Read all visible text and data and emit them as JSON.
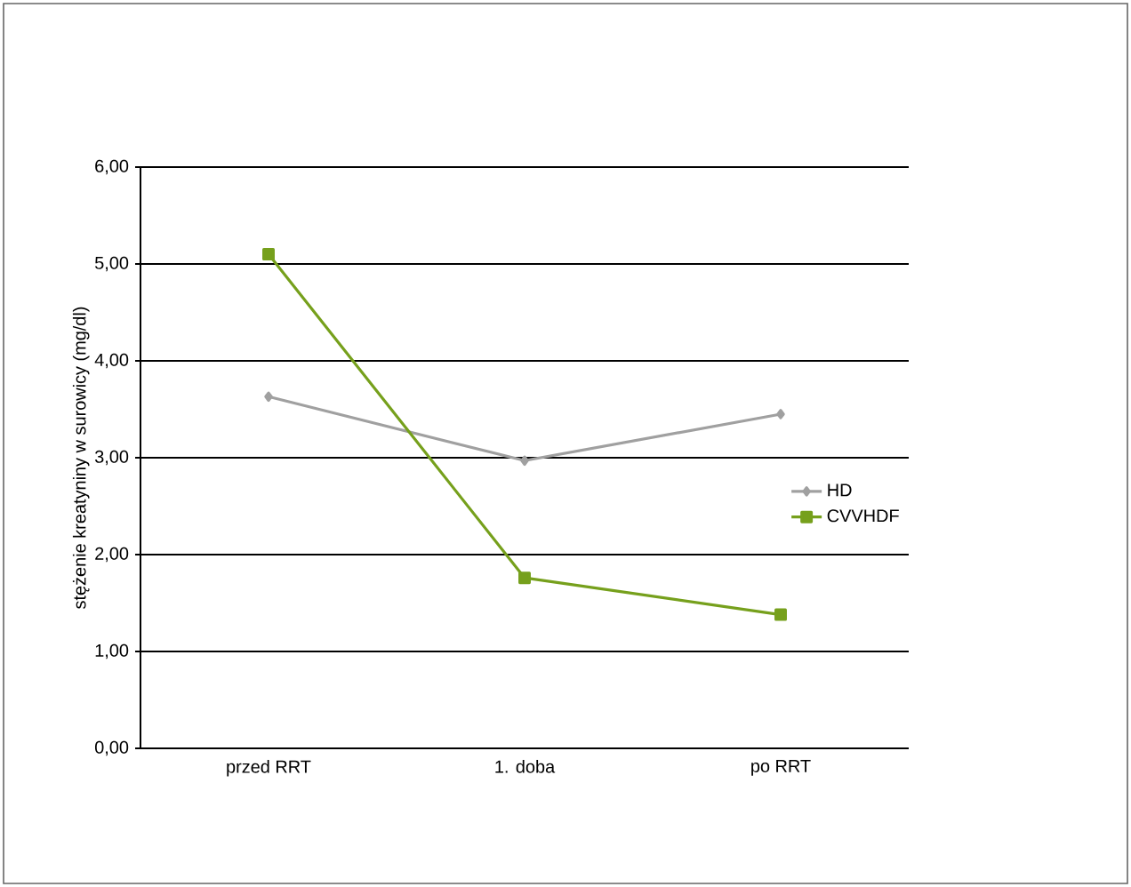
{
  "chart_data": {
    "type": "line",
    "ylabel": "stężenie kreatyniny w surowicy (mg/dl)",
    "categories": [
      "przed RRT",
      "1. doba",
      "po RRT"
    ],
    "series": [
      {
        "name": "HD",
        "color": "#a0a0a0",
        "marker": "diamond",
        "values": [
          3.63,
          2.97,
          3.45
        ]
      },
      {
        "name": "CVVHDF",
        "color": "#76a01c",
        "marker": "square",
        "values": [
          5.1,
          1.76,
          1.38
        ]
      }
    ],
    "ylim": [
      0,
      6
    ],
    "yticks": [
      {
        "value": 0,
        "label": "0,00"
      },
      {
        "value": 1,
        "label": "1,00"
      },
      {
        "value": 2,
        "label": "2,00"
      },
      {
        "value": 3,
        "label": "3,00"
      },
      {
        "value": 4,
        "label": "4,00"
      },
      {
        "value": 5,
        "label": "5,00"
      },
      {
        "value": 6,
        "label": "6,00"
      }
    ],
    "grid": "y",
    "legend": "right",
    "line_style": "solid"
  }
}
